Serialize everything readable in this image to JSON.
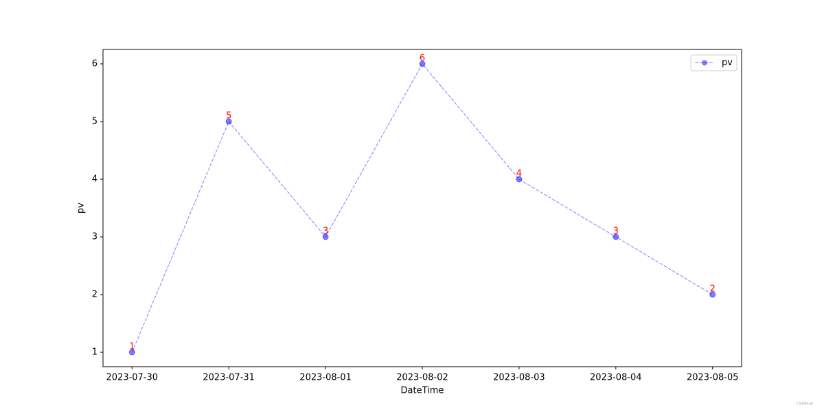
{
  "chart_data": {
    "type": "line",
    "xlabel": "DateTime",
    "ylabel": "pv",
    "categories": [
      "2023-07-30",
      "2023-07-31",
      "2023-08-01",
      "2023-08-02",
      "2023-08-03",
      "2023-08-04",
      "2023-08-05"
    ],
    "series": [
      {
        "name": "pv",
        "color": "#0000ff",
        "values": [
          1,
          5,
          3,
          6,
          4,
          3,
          2
        ]
      }
    ],
    "linestyle": "dashed",
    "marker": "o",
    "alpha": 0.5,
    "data_labels": true,
    "label_color": "#ff0000",
    "ylim": [
      0.75,
      6.25
    ],
    "yticks": [
      1,
      2,
      3,
      4,
      5,
      6
    ],
    "grid": false,
    "legend": "upper right",
    "watermark": "CSDN-ai"
  }
}
